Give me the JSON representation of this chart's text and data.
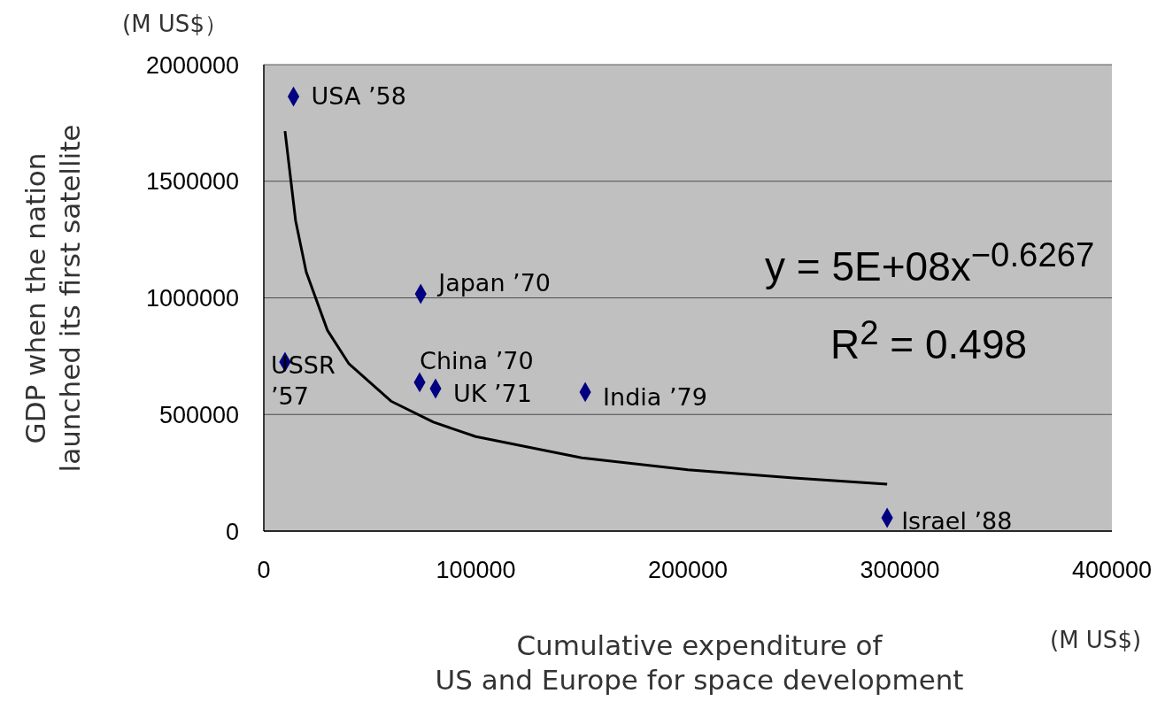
{
  "chart_data": {
    "type": "scatter",
    "xlabel": "Cumulative expenditure of\nUS and Europe for space development",
    "ylabel": "GDP when the nation\nlaunched its first satellite",
    "xlim": [
      0,
      400000
    ],
    "xticks": [
      0,
      100000,
      200000,
      300000,
      400000
    ],
    "ylim": [
      0,
      2000000
    ],
    "yticks": [
      0,
      500000,
      1000000,
      1500000,
      2000000
    ],
    "grid": "y",
    "marker": "diamond",
    "series": [
      {
        "color": "#000080",
        "x": [
          14000,
          10000,
          74000,
          73500,
          81000,
          151600,
          294000
        ],
        "values": [
          1863000,
          725000,
          1017000,
          638000,
          611000,
          596000,
          57000
        ]
      },
      {
        "type": "line",
        "color": "#000000",
        "line_style": "solid",
        "marker": "none",
        "x": [
          10000,
          15000,
          20000,
          30000,
          40000,
          60000,
          80000,
          100000,
          150000,
          200000,
          250000,
          294000
        ],
        "values": [
          1715000,
          1331000,
          1111000,
          861000,
          719000,
          557000,
          467000,
          405000,
          314000,
          263000,
          228000,
          201000
        ]
      }
    ],
    "annotations": [
      "(M US$）",
      "(M US$)",
      "y = 5E+08x$^{−0.6267}$",
      "R$^{2}$ = 0.498",
      {
        "text": "USA ’58",
        "x": 14000,
        "y": 1863000
      },
      {
        "text": "USSR ’57",
        "x": 10000,
        "y": 725000
      },
      {
        "text": "Japan ’70",
        "x": 74000,
        "y": 1017000
      },
      {
        "text": "China ’70",
        "x": 73500,
        "y": 638000
      },
      {
        "text": "UK ’71",
        "x": 81000,
        "y": 611000
      },
      {
        "text": "India ’79",
        "x": 151600,
        "y": 596000
      },
      {
        "text": "Israel ’88",
        "x": 294000,
        "y": 57000
      }
    ]
  }
}
